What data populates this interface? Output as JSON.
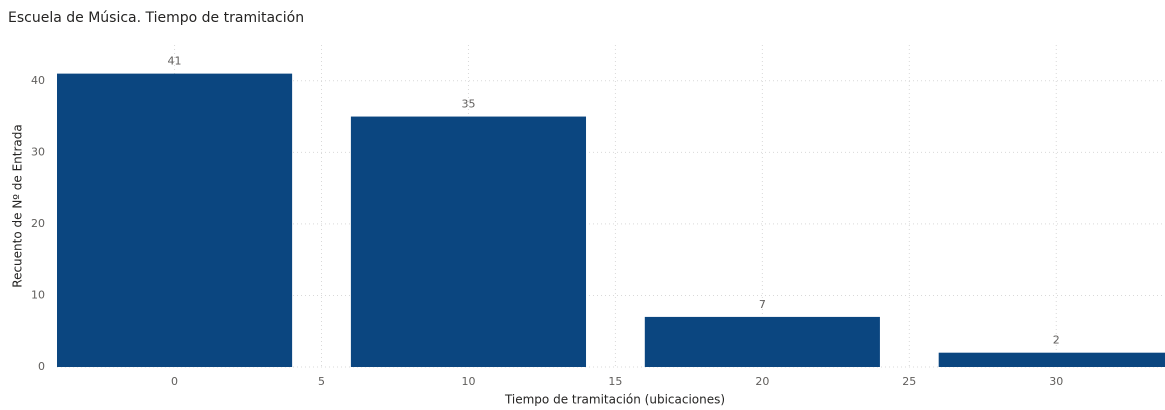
{
  "chart_data": {
    "type": "bar",
    "title": "Escuela de Música. Tiempo de tramitación",
    "x_label": "Tiempo de tramitación (ubicaciones)",
    "y_label": "Recuento de Nº de Entrada",
    "x": [
      0,
      10,
      20,
      30
    ],
    "values": [
      41,
      35,
      7,
      2
    ],
    "color": "#0b4680",
    "xlim": [
      -4,
      33.7
    ],
    "xticks": [
      0,
      5,
      10,
      15,
      20,
      25,
      30
    ],
    "ylim": [
      0,
      45
    ],
    "yticks": [
      0,
      10,
      20,
      30,
      40
    ],
    "grid": true
  }
}
